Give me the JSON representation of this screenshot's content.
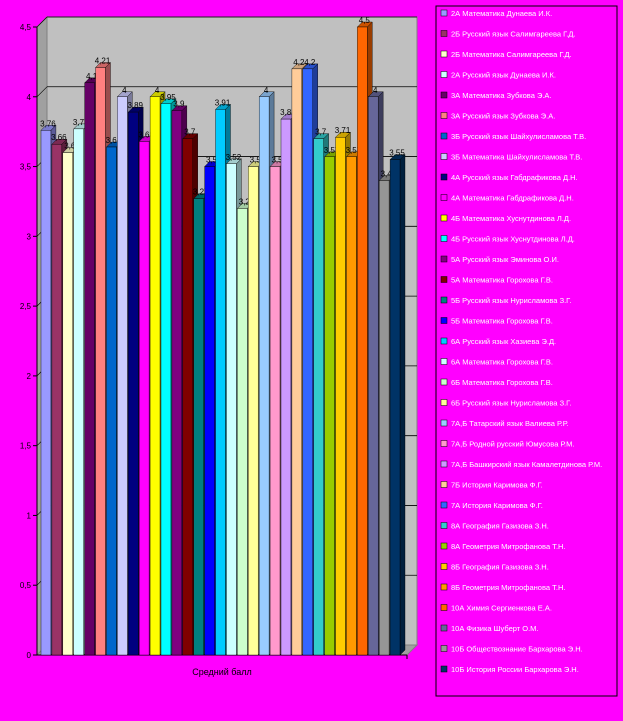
{
  "chart_data": {
    "type": "bar",
    "categories": [
      "Средний балл"
    ],
    "xlabel": "Средний балл",
    "ylim": [
      0,
      4.5
    ],
    "yticks": [
      0,
      0.5,
      1,
      1.5,
      2,
      2.5,
      3,
      3.5,
      4,
      4.5
    ],
    "ytick_labels": [
      "0",
      "0,5",
      "1",
      "1,5",
      "2",
      "2,5",
      "3",
      "3,5",
      "4",
      "4,5"
    ],
    "grid": true,
    "legend_position": "right",
    "series": [
      {
        "name": "2А Математика Дунаева И.К.",
        "value": 3.76,
        "label": "3,76",
        "color": "#9999ff"
      },
      {
        "name": "2Б Русский язык Салимгареева Г.Д.",
        "value": 3.66,
        "label": "3,66",
        "color": "#993366"
      },
      {
        "name": "2Б Математика Салимгареева Г.Д.",
        "value": 3.6,
        "label": "3,6",
        "color": "#ffffcc"
      },
      {
        "name": "2А Русский язык Дунаева И.К.",
        "value": 3.77,
        "label": "3,77",
        "color": "#ccffff"
      },
      {
        "name": "3А Математика Зубкова Э.А.",
        "value": 4.1,
        "label": "4,1",
        "color": "#660066"
      },
      {
        "name": "3А Русский язык Зубкова Э.А.",
        "value": 4.21,
        "label": "4,21",
        "color": "#ff8080"
      },
      {
        "name": "3Б Русский язык Шайхулисламова Т.В.",
        "value": 3.64,
        "label": "3,64",
        "color": "#0066cc"
      },
      {
        "name": "3Б Математика Шайхулисламова Т.В.",
        "value": 4.0,
        "label": "4",
        "color": "#ccccff"
      },
      {
        "name": "4А Русский язык Габдрафикова Д.Н.",
        "value": 3.89,
        "label": "3,89",
        "color": "#000080"
      },
      {
        "name": "4А Математика Габдрафикова Д.Н.",
        "value": 3.68,
        "label": "3,68",
        "color": "#ff00ff"
      },
      {
        "name": "4Б Математика Хуснутдинова Л.Д.",
        "value": 4.0,
        "label": "4",
        "color": "#ffff00"
      },
      {
        "name": "4Б Русский язык Хуснутдинова Л.Д.",
        "value": 3.95,
        "label": "3,95",
        "color": "#00ffff"
      },
      {
        "name": "5А Русский язык Эминова О.И.",
        "value": 3.9,
        "label": "3,9",
        "color": "#800080"
      },
      {
        "name": "5А Математика Горохова Г.В.",
        "value": 3.7,
        "label": "3,7",
        "color": "#800000"
      },
      {
        "name": "5Б Русский язык Нурисламова З.Г.",
        "value": 3.27,
        "label": "3,27",
        "color": "#008080"
      },
      {
        "name": "5Б Математика Горохова Г.В.",
        "value": 3.5,
        "label": "3,5",
        "color": "#0000ff"
      },
      {
        "name": "6А Русский язык Хазиева Э.Д.",
        "value": 3.91,
        "label": "3,91",
        "color": "#00ccff"
      },
      {
        "name": "6А Математика Горохова Г.В.",
        "value": 3.52,
        "label": "3,52",
        "color": "#ccffff"
      },
      {
        "name": "6Б Математика Горохова Г.В.",
        "value": 3.2,
        "label": "3,2",
        "color": "#ccffcc"
      },
      {
        "name": "6Б Русский язык Нурисламова З.Г.",
        "value": 3.5,
        "label": "3,5",
        "color": "#ffff99"
      },
      {
        "name": "7А,Б Татарский язык Валиева Р.Р.",
        "value": 4.0,
        "label": "4",
        "color": "#99ccff"
      },
      {
        "name": "7А,Б Родной русский Юмусова Р.М.",
        "value": 3.5,
        "label": "3,5",
        "color": "#ff99cc"
      },
      {
        "name": "7А,Б Башкирский язык Камалетдинова Р.М.",
        "value": 3.84,
        "label": "3,84",
        "color": "#cc99ff"
      },
      {
        "name": "7Б История Каримова Ф.Г.",
        "value": 4.2,
        "label": "4,2",
        "color": "#ffcc99"
      },
      {
        "name": "7А История Каримова Ф.Г.",
        "value": 4.2,
        "label": "4,2",
        "color": "#3366ff"
      },
      {
        "name": "8А География Газизова З.Н.",
        "value": 3.7,
        "label": "3,7",
        "color": "#33cccc"
      },
      {
        "name": "8А Геометрия Митрофанова Т.Н.",
        "value": 3.57,
        "label": "3,57",
        "color": "#99cc00"
      },
      {
        "name": "8Б География Газизова З.Н.",
        "value": 3.71,
        "label": "3,71",
        "color": "#ffcc00"
      },
      {
        "name": "8Б Геометрия Митрофанова Т.Н.",
        "value": 3.57,
        "label": "3,57",
        "color": "#ff9900"
      },
      {
        "name": "10А Химия Сергиенкова Е.А.",
        "value": 4.5,
        "label": "4,5",
        "color": "#ff6600"
      },
      {
        "name": "10А Физика Шуберт О.М.",
        "value": 4.0,
        "label": "4",
        "color": "#666699"
      },
      {
        "name": "10Б Обществознание Бархарова Э.Н.",
        "value": 3.4,
        "label": "3,4",
        "color": "#969696"
      },
      {
        "name": "10Б История России Бархарова Э.Н.",
        "value": 3.55,
        "label": "3,55",
        "color": "#003366"
      }
    ]
  }
}
